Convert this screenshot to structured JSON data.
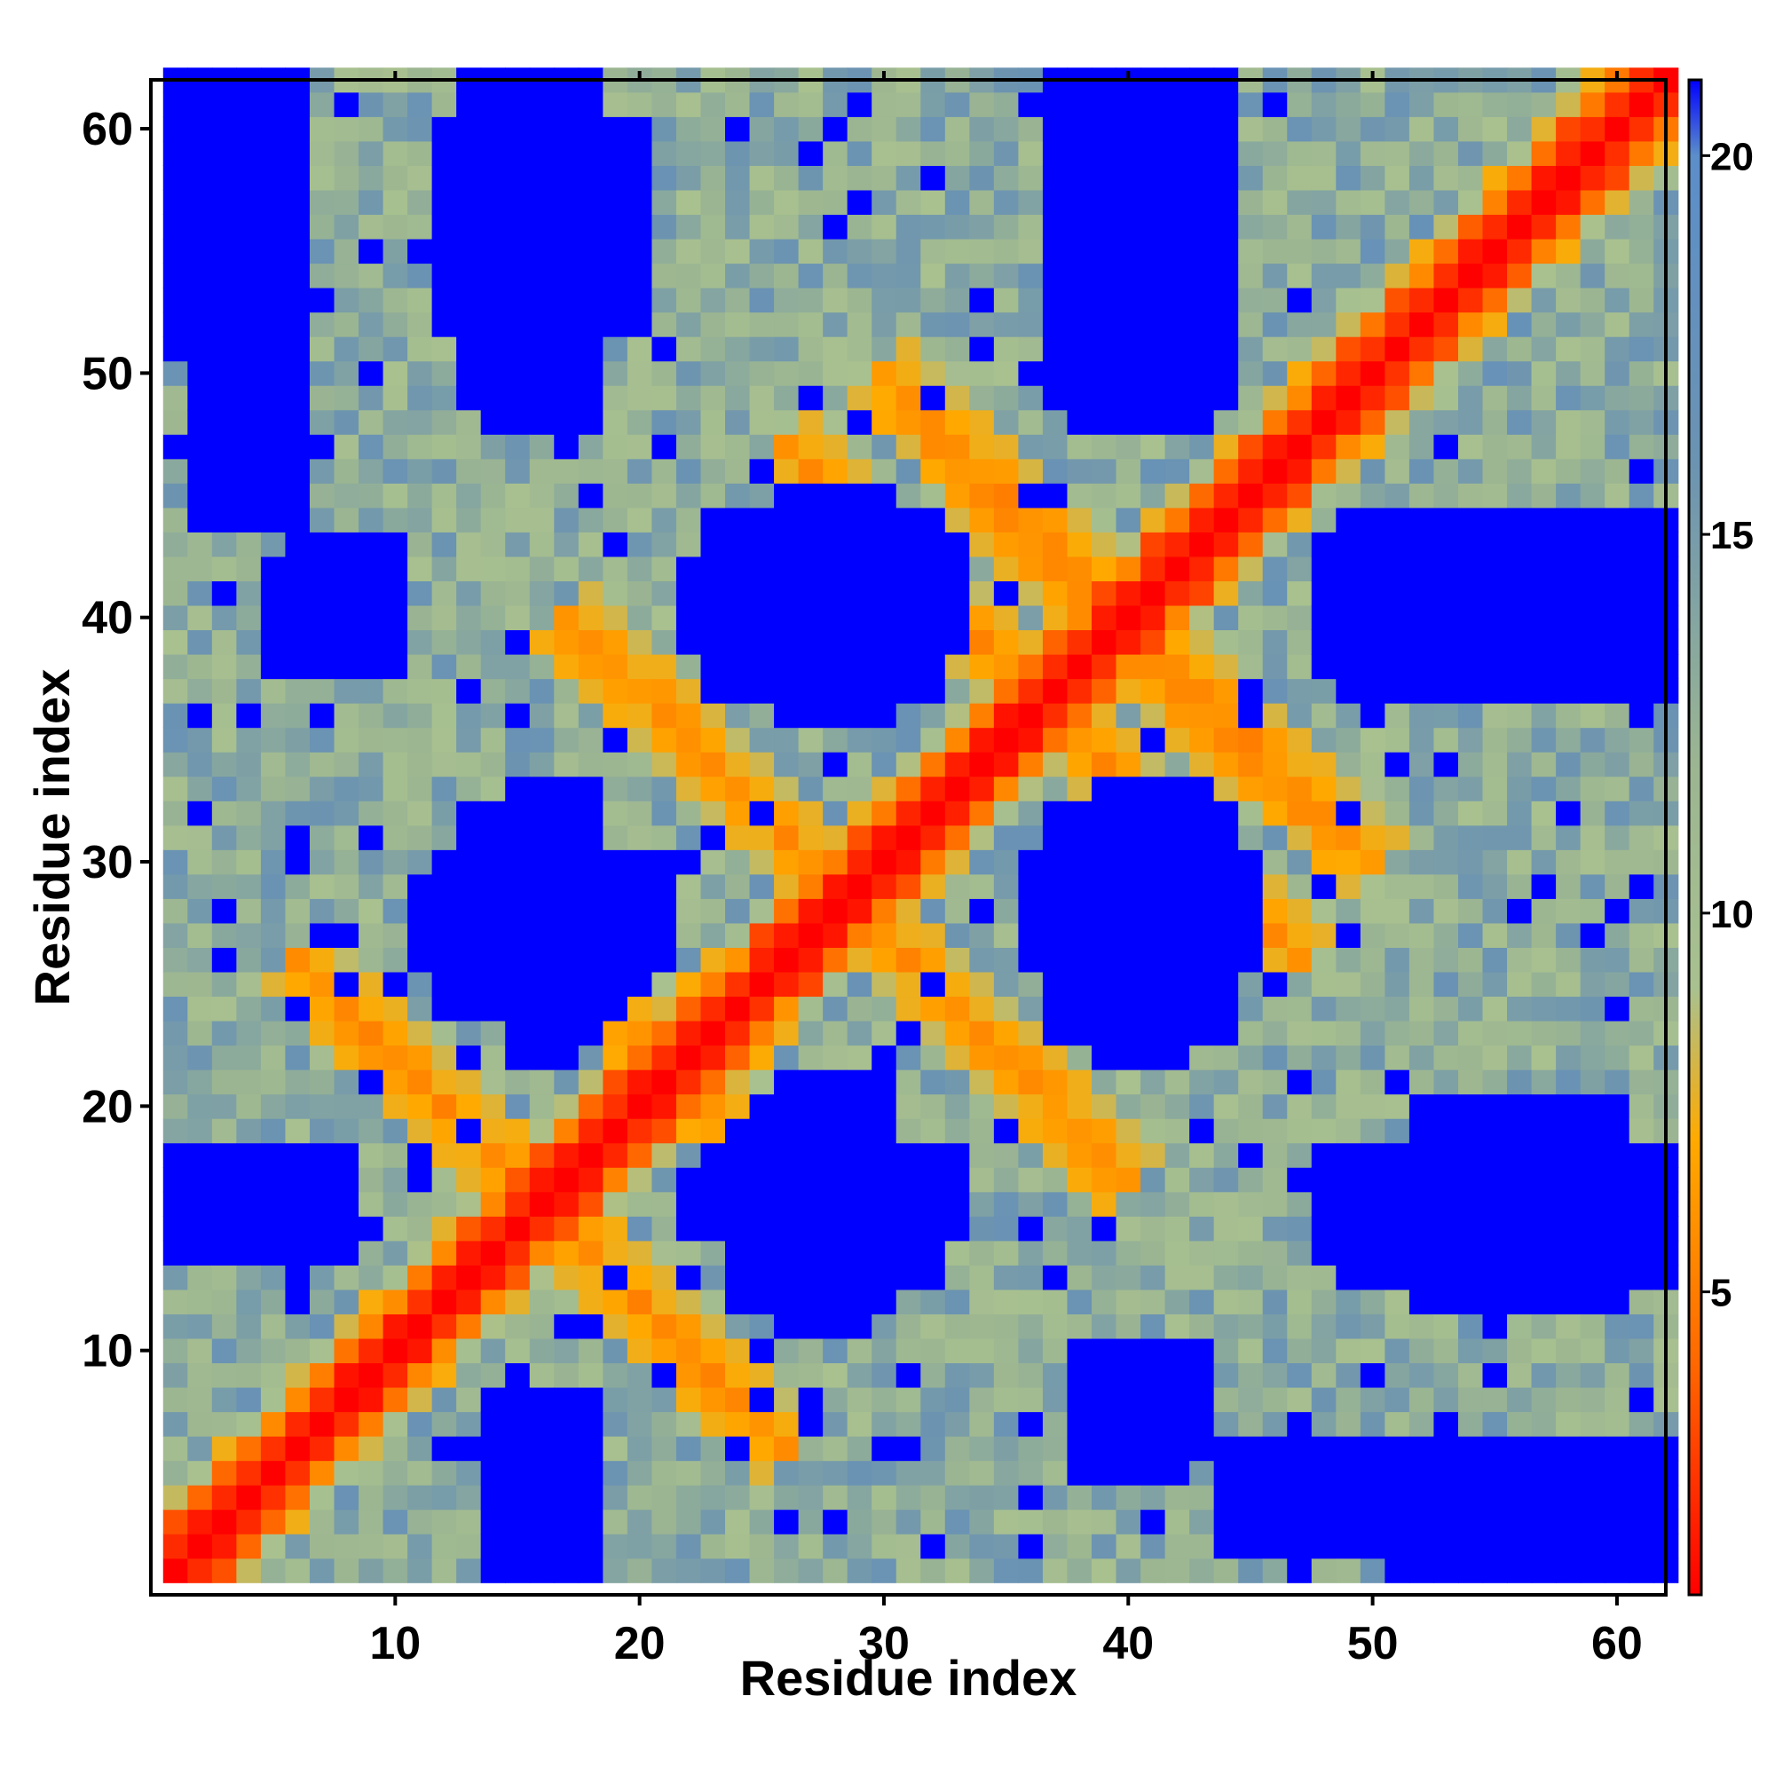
{
  "chart_data": {
    "type": "heatmap",
    "title": "",
    "xlabel": "Residue index",
    "ylabel": "Residue index",
    "n_residues": 62,
    "x_range": [
      1,
      62
    ],
    "y_range": [
      1,
      62
    ],
    "x_ticks": [
      10,
      20,
      30,
      40,
      50,
      60
    ],
    "y_ticks": [
      10,
      20,
      30,
      40,
      50,
      60
    ],
    "colorbar": {
      "range": [
        1,
        21
      ],
      "ticks": [
        5,
        10,
        15,
        20
      ],
      "stops": [
        {
          "value": 1,
          "color": "#ff0000"
        },
        {
          "value": 4,
          "color": "#ff6600"
        },
        {
          "value": 7,
          "color": "#ffaa00"
        },
        {
          "value": 9,
          "color": "#a9c18f"
        },
        {
          "value": 12,
          "color": "#9bb592"
        },
        {
          "value": 16,
          "color": "#6b93b2"
        },
        {
          "value": 20,
          "color": "#5c8ec9"
        },
        {
          "value": 21,
          "color": "#0000ff"
        }
      ]
    },
    "background_value": 13,
    "value_cap": 21,
    "features": {
      "diagonal": {
        "description": "main diagonal i=j",
        "value_at_0": 1,
        "width_per_unit": 2.2
      },
      "antidiagonal_contacts": [
        {
          "from": [
            6,
            26
          ],
          "to": [
            20,
            12
          ],
          "min_value": 5
        },
        {
          "from": [
            15,
            28
          ],
          "to": [
            28,
            15
          ],
          "min_value": 5
        },
        {
          "from": [
            17,
            40
          ],
          "to": [
            40,
            17
          ],
          "min_value": 5
        },
        {
          "from": [
            26,
            47
          ],
          "to": [
            47,
            26
          ],
          "min_value": 5
        },
        {
          "from": [
            38,
            40
          ],
          "to": [
            50,
            30
          ],
          "min_value": 5
        },
        {
          "from": [
            30,
            50
          ],
          "to": [
            50,
            30
          ],
          "min_value": 5
        }
      ],
      "far_blocks": [
        {
          "x": [
            1,
            8
          ],
          "y": [
            14,
            19
          ],
          "value": 21
        },
        {
          "x": [
            14,
            19
          ],
          "y": [
            14,
            19
          ],
          "value": 21
        }
      ]
    },
    "blue_blocks": [
      {
        "x": [
          2,
          6
        ],
        "y": [
          44,
          62
        ],
        "value": 21
      },
      {
        "x": [
          15,
          18
        ],
        "y": [
          48,
          62
        ],
        "value": 21
      },
      {
        "x": [
          12,
          20
        ],
        "y": [
          52,
          60
        ],
        "value": 21
      },
      {
        "x": [
          38,
          44
        ],
        "y": [
          48,
          62
        ],
        "value": 21
      },
      {
        "x": [
          6,
          10
        ],
        "y": [
          38,
          43
        ],
        "value": 21
      },
      {
        "x": [
          23,
          32
        ],
        "y": [
          37,
          44
        ],
        "value": 21
      },
      {
        "x": [
          26,
          30
        ],
        "y": [
          36,
          45
        ],
        "value": 21
      },
      {
        "x": [
          49,
          62
        ],
        "y": [
          37,
          43
        ],
        "value": 21
      },
      {
        "x": [
          12,
          21
        ],
        "y": [
          24,
          30
        ],
        "value": 21
      },
      {
        "x": [
          15,
          18
        ],
        "y": [
          22,
          33
        ],
        "value": 21
      },
      {
        "x": [
          37,
          43
        ],
        "y": [
          24,
          31
        ],
        "value": 21
      },
      {
        "x": [
          39,
          42
        ],
        "y": [
          22,
          33
        ],
        "value": 21
      },
      {
        "x": [
          1,
          8
        ],
        "y": [
          14,
          18
        ],
        "value": 21
      },
      {
        "x": [
          24,
          32
        ],
        "y": [
          13,
          17
        ],
        "value": 21
      },
      {
        "x": [
          26,
          29
        ],
        "y": [
          11,
          19
        ],
        "value": 21
      },
      {
        "x": [
          49,
          62
        ],
        "y": [
          13,
          18
        ],
        "value": 21
      },
      {
        "x": [
          53,
          58
        ],
        "y": [
          12,
          19
        ],
        "value": 21
      },
      {
        "x": [
          15,
          18
        ],
        "y": [
          1,
          7
        ],
        "value": 21
      },
      {
        "x": [
          38,
          42
        ],
        "y": [
          5,
          8
        ],
        "value": 21
      },
      {
        "x": [
          52,
          62
        ],
        "y": [
          1,
          3
        ],
        "value": 21
      }
    ],
    "grid": false,
    "legend": "colorbar-right"
  }
}
